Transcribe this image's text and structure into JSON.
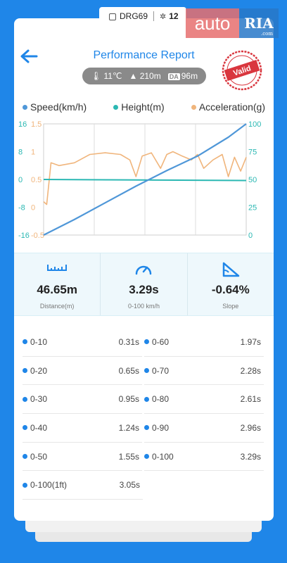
{
  "device": {
    "name": "DRG69",
    "satellites": "12"
  },
  "logo": {
    "part1": "auto",
    "part2": "RIA",
    "domain": ".com"
  },
  "header": {
    "title": "Performance Report",
    "stamp": "Valid"
  },
  "conditions": {
    "temperature": "11℃",
    "altitude": "210m",
    "da_badge": "DA",
    "density_altitude": "96m"
  },
  "colors": {
    "accent": "#1f86e8",
    "speed": "#4f97d8",
    "height": "#2bb8b3",
    "acceleration": "#f0b57c",
    "stamp": "#d9363e"
  },
  "chart_data": {
    "type": "line",
    "legend": [
      "Speed(km/h)",
      "Height(m)",
      "Acceleration(g)"
    ],
    "left_speed_ticks": [
      "16",
      "8",
      "0",
      "-8",
      "-16"
    ],
    "left_accel_ticks": [
      "1.5",
      "1",
      "0.5",
      "0",
      "-0.5"
    ],
    "right_ticks": [
      "100",
      "75",
      "50",
      "25",
      "0"
    ],
    "speed_range": [
      0,
      100
    ],
    "accel_range": [
      -0.5,
      1.5
    ],
    "height_range": [
      -16,
      16
    ],
    "series": [
      {
        "name": "Speed(km/h)",
        "axis": "right",
        "x": [
          0,
          0.5,
          1,
          1.5,
          2,
          2.5,
          3,
          3.29
        ],
        "values": [
          0,
          14,
          29,
          44,
          58,
          71,
          88,
          100
        ]
      },
      {
        "name": "Height(m)",
        "axis": "left",
        "x": [
          0,
          3.29
        ],
        "values": [
          0,
          -0.3
        ]
      },
      {
        "name": "Acceleration(g)",
        "axis": "left",
        "x": [
          0,
          0.05,
          0.12,
          0.25,
          0.5,
          0.75,
          1.0,
          1.25,
          1.4,
          1.5,
          1.6,
          1.75,
          1.9,
          2.0,
          2.1,
          2.25,
          2.4,
          2.5,
          2.6,
          2.75,
          2.9,
          3.0,
          3.1,
          3.2,
          3.29
        ],
        "values": [
          0.1,
          0.05,
          0.8,
          0.75,
          0.8,
          0.95,
          0.98,
          0.95,
          0.85,
          0.55,
          0.92,
          0.98,
          0.7,
          0.95,
          1.0,
          0.92,
          0.85,
          0.95,
          0.7,
          0.85,
          0.95,
          0.55,
          0.9,
          0.65,
          0.9
        ]
      }
    ]
  },
  "stats": [
    {
      "icon": "ruler-icon",
      "value": "46.65m",
      "label": "Distance(m)"
    },
    {
      "icon": "speedometer-icon",
      "value": "3.29s",
      "label": "0-100 km/h"
    },
    {
      "icon": "slope-icon",
      "value": "-0.64%",
      "label": "Slope"
    }
  ],
  "splits": [
    [
      {
        "name": "0-10",
        "time": "0.31s"
      },
      {
        "name": "0-60",
        "time": "1.97s"
      }
    ],
    [
      {
        "name": "0-20",
        "time": "0.65s"
      },
      {
        "name": "0-70",
        "time": "2.28s"
      }
    ],
    [
      {
        "name": "0-30",
        "time": "0.95s"
      },
      {
        "name": "0-80",
        "time": "2.61s"
      }
    ],
    [
      {
        "name": "0-40",
        "time": "1.24s"
      },
      {
        "name": "0-90",
        "time": "2.96s"
      }
    ],
    [
      {
        "name": "0-50",
        "time": "1.55s"
      },
      {
        "name": "0-100",
        "time": "3.29s"
      }
    ],
    [
      {
        "name": "0-100(1ft)",
        "time": "3.05s"
      }
    ]
  ]
}
